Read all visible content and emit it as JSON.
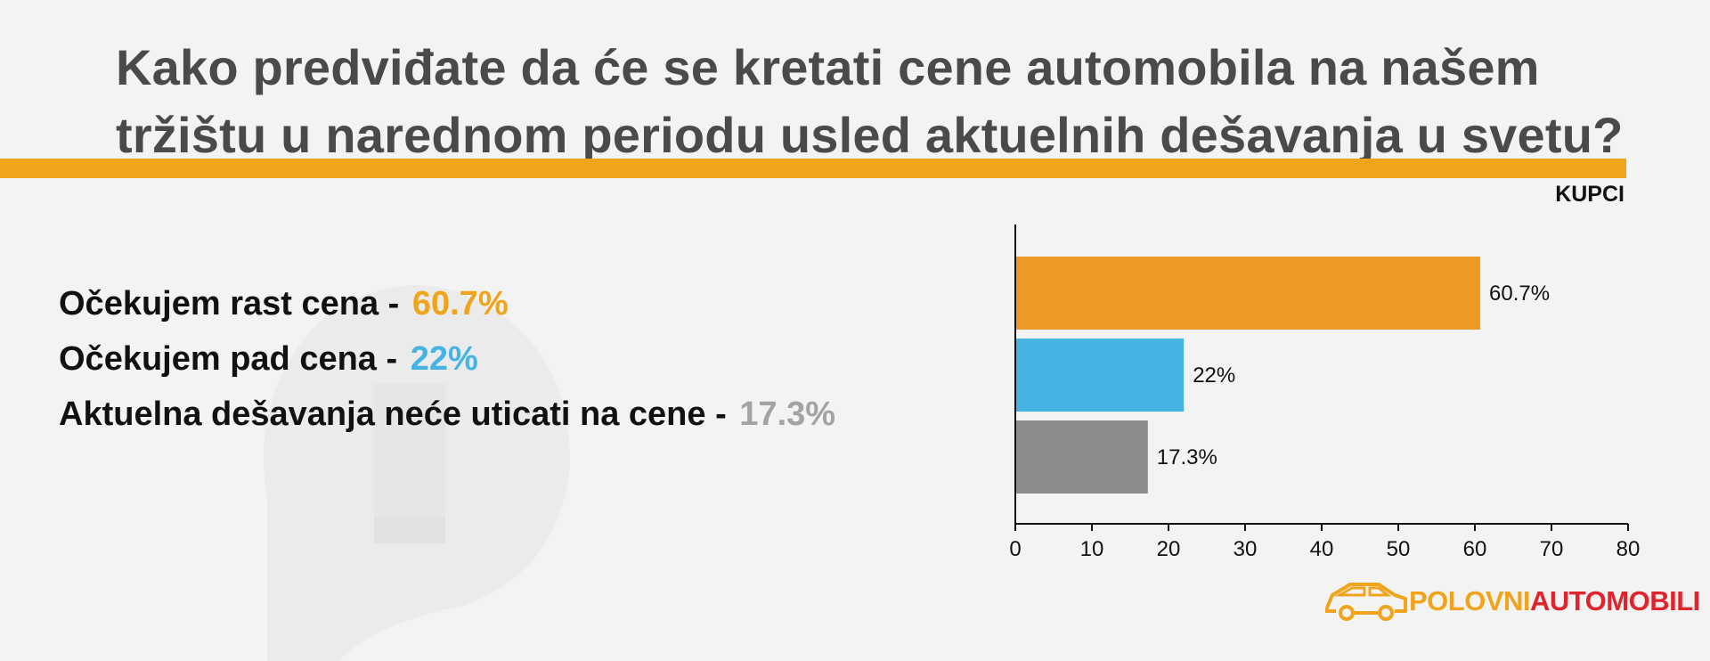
{
  "title_lines": [
    "Kako predviđate da će se kretati cene automobila na našem",
    "tržištu u narednom periodu usled aktuelnih dešavanja u svetu?"
  ],
  "chart_label": "KUPCI",
  "legend": [
    {
      "text": "Očekujem rast cena - ",
      "pct": "60.7%",
      "color": "#f0a41c"
    },
    {
      "text": "Očekujem pad cena  - ",
      "pct": "22%",
      "color": "#45b4e3"
    },
    {
      "text": "Aktuelna dešavanja neće uticati na cene  - ",
      "pct": "17.3%",
      "color": "#a3a3a3"
    }
  ],
  "chart_data": {
    "type": "bar",
    "orientation": "horizontal",
    "categories": [
      "Očekujem rast cena",
      "Očekujem pad cena",
      "Aktuelna dešavanja neće uticati na cene"
    ],
    "values": [
      60.7,
      22,
      17.3
    ],
    "data_labels": [
      "60.7%",
      "22%",
      "17.3%"
    ],
    "colors": [
      "#eb9a26",
      "#45b4e3",
      "#8c8c8c"
    ],
    "xlim": [
      0,
      80
    ],
    "xticks": [
      0,
      10,
      20,
      30,
      40,
      50,
      60,
      70,
      80
    ],
    "grid": false,
    "title": "",
    "xlabel": "",
    "ylabel": ""
  },
  "logo": {
    "part1": "POLOVNI",
    "part2": "AUTOMOBILI",
    "icon": "car-icon"
  }
}
